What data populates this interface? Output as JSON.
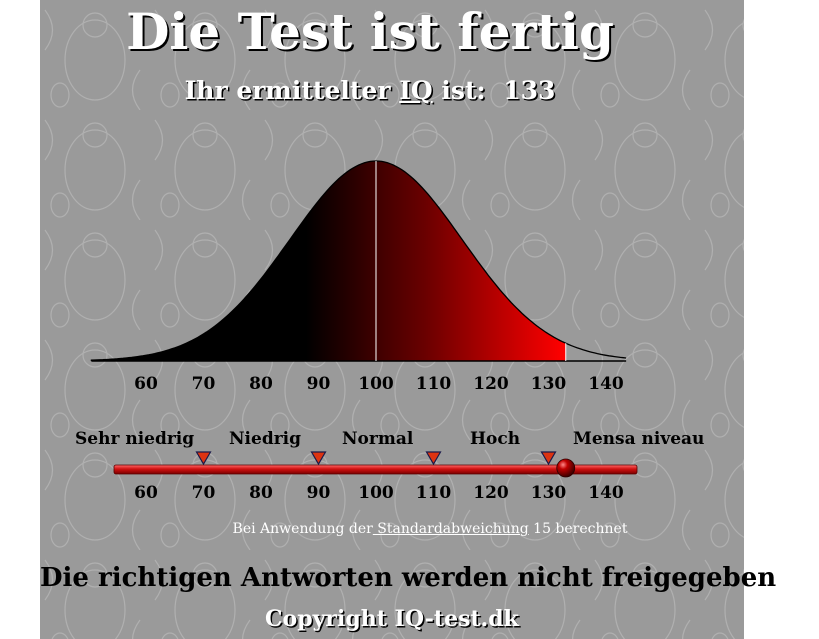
{
  "page": {
    "title": "Die Test ist fertig",
    "subtitle_prefix": "Ihr ermittelter ",
    "subtitle_link": "IQ",
    "subtitle_suffix": " ist:",
    "iq_value": "133",
    "note_prefix": "Bei Anwendung der",
    "note_link": " Standardabweichung",
    "note_suffix": " 15 berechnet",
    "footer": "Die richtigen Antworten werden nicht freigegeben",
    "copyright": "Copyright IQ-test.dk"
  },
  "categories": [
    "Sehr niedrig",
    "Niedrig",
    "Normal",
    "Hoch",
    "Mensa niveau"
  ],
  "chart_data": {
    "type": "area",
    "title": "",
    "xlabel": "",
    "ylabel": "",
    "x_ticks": [
      60,
      70,
      80,
      90,
      100,
      110,
      120,
      130,
      140
    ],
    "xlim": [
      52,
      143
    ],
    "distribution": {
      "mean": 100,
      "sd": 15
    },
    "highlight_to": 133,
    "boundaries": [
      70,
      90,
      110,
      130
    ],
    "marker": 133,
    "grid": false
  },
  "colors": {
    "panel": "#9a9a9a",
    "curve_dark": "#000000",
    "curve_red": "#ff0000",
    "bar": "#cc1111",
    "marker": "#dd3311"
  }
}
